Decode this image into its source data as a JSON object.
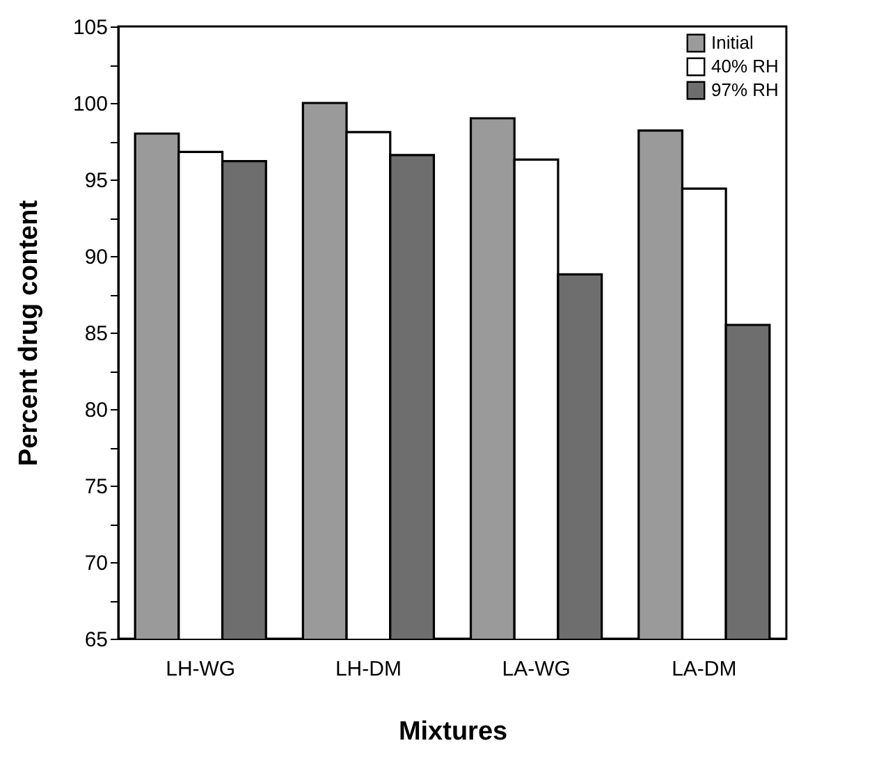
{
  "chart_data": {
    "type": "bar",
    "xlabel": "Mixtures",
    "ylabel": "Percent drug content",
    "categories": [
      "LH-WG",
      "LH-DM",
      "LA-WG",
      "LA-DM"
    ],
    "series": [
      {
        "name": "Initial",
        "color": "#9a9a9a",
        "values": [
          98.0,
          100.0,
          99.0,
          98.2
        ]
      },
      {
        "name": "40% RH",
        "color": "#ffffff",
        "values": [
          96.8,
          98.1,
          96.3,
          94.4
        ]
      },
      {
        "name": "97% RH",
        "color": "#6e6e6e",
        "values": [
          96.2,
          96.6,
          88.8,
          85.5
        ]
      }
    ],
    "ylim": [
      65,
      105
    ],
    "yticks": [
      65,
      {
        "value": 67.5,
        "label": null
      },
      70,
      {
        "value": 72.5,
        "label": null
      },
      75,
      {
        "value": 77.5,
        "label": null
      },
      80,
      {
        "value": 82.5,
        "label": null
      },
      85,
      {
        "value": 87.5,
        "label": null
      },
      90,
      {
        "value": 92.5,
        "label": null
      },
      95,
      {
        "value": 97.5,
        "label": null
      },
      100,
      {
        "value": 102.5,
        "label": null
      },
      105
    ],
    "grid": false,
    "legend": "top right"
  }
}
